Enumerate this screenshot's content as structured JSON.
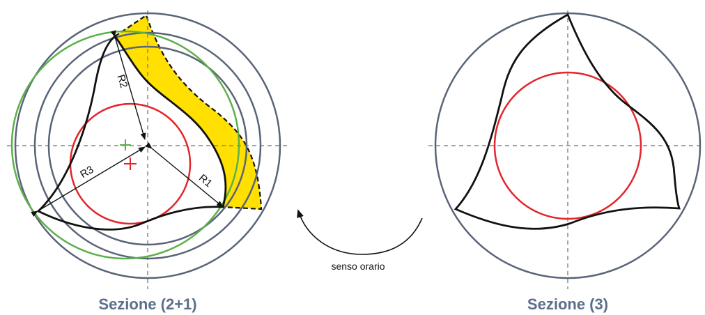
{
  "left_caption": "Sezione (2+1)",
  "right_caption": "Sezione (3)",
  "radius_labels": {
    "r1": "R1",
    "r2": "R2",
    "r3": "R3"
  },
  "rotation_label": "senso orario",
  "colors": {
    "circle_grey": "#5a6478",
    "circle_red": "#e3242b",
    "circle_green": "#5cb04a",
    "highlight_yellow": "#ffe000",
    "outline_black": "#111111",
    "caption_blue": "#5b6f8a",
    "axis_dash": "#888888"
  }
}
